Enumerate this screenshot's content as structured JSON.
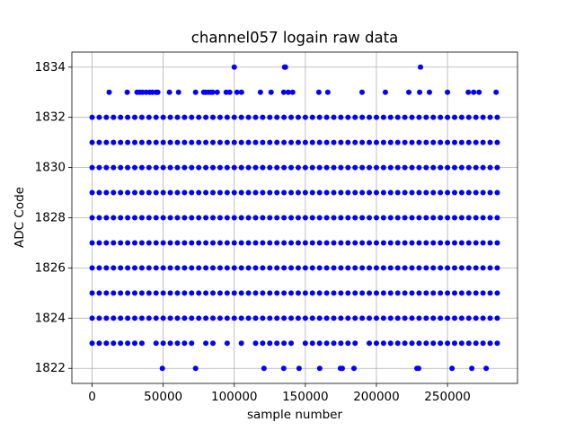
{
  "chart_data": {
    "type": "scatter",
    "title": "channel057 logain raw data",
    "xlabel": "sample number",
    "ylabel": "ADC Code",
    "xlim": [
      -14250,
      299250
    ],
    "ylim": [
      1821.4,
      1834.6
    ],
    "xticks": [
      0,
      50000,
      100000,
      150000,
      200000,
      250000
    ],
    "yticks": [
      1822,
      1824,
      1826,
      1828,
      1830,
      1832,
      1834
    ],
    "grid": true,
    "x": [
      0,
      5000,
      10000,
      15000,
      20000,
      25000,
      30000,
      35000,
      40000,
      45000,
      50000,
      55000,
      60000,
      65000,
      70000,
      75000,
      80000,
      85000,
      90000,
      95000,
      100000,
      105000,
      110000,
      115000,
      120000,
      125000,
      130000,
      135000,
      140000,
      145000,
      150000,
      155000,
      160000,
      165000,
      170000,
      175000,
      180000,
      185000,
      190000,
      195000,
      200000,
      205000,
      210000,
      215000,
      220000,
      225000,
      230000,
      235000,
      240000,
      245000,
      250000,
      255000,
      260000,
      265000,
      270000,
      275000,
      280000,
      285000
    ],
    "series": [
      {
        "color": "#0000ff",
        "values": [
          1824,
          1824,
          1824,
          1824,
          1824,
          1824,
          1824,
          1824,
          1824,
          1824,
          1824,
          1824,
          1824,
          1824,
          1824,
          1824,
          1824,
          1824,
          1824,
          1824,
          1824,
          1824,
          1824,
          1824,
          1824,
          1824,
          1824,
          1824,
          1824,
          1824,
          1824,
          1824,
          1824,
          1824,
          1824,
          1824,
          1824,
          1824,
          1824,
          1824,
          1824,
          1824,
          1824,
          1824,
          1824,
          1824,
          1824,
          1824,
          1824,
          1824,
          1824,
          1824,
          1824,
          1824,
          1824,
          1824,
          1824,
          1824
        ]
      },
      {
        "color": "#0000ff",
        "values": [
          1825,
          1825,
          1825,
          1825,
          1825,
          1825,
          1825,
          1825,
          1825,
          1825,
          1825,
          1825,
          1825,
          1825,
          1825,
          1825,
          1825,
          1825,
          1825,
          1825,
          1825,
          1825,
          1825,
          1825,
          1825,
          1825,
          1825,
          1825,
          1825,
          1825,
          1825,
          1825,
          1825,
          1825,
          1825,
          1825,
          1825,
          1825,
          1825,
          1825,
          1825,
          1825,
          1825,
          1825,
          1825,
          1825,
          1825,
          1825,
          1825,
          1825,
          1825,
          1825,
          1825,
          1825,
          1825,
          1825,
          1825,
          1825
        ]
      },
      {
        "color": "#0000ff",
        "values": [
          1826,
          1826,
          1826,
          1826,
          1826,
          1826,
          1826,
          1826,
          1826,
          1826,
          1826,
          1826,
          1826,
          1826,
          1826,
          1826,
          1826,
          1826,
          1826,
          1826,
          1826,
          1826,
          1826,
          1826,
          1826,
          1826,
          1826,
          1826,
          1826,
          1826,
          1826,
          1826,
          1826,
          1826,
          1826,
          1826,
          1826,
          1826,
          1826,
          1826,
          1826,
          1826,
          1826,
          1826,
          1826,
          1826,
          1826,
          1826,
          1826,
          1826,
          1826,
          1826,
          1826,
          1826,
          1826,
          1826,
          1826,
          1826
        ]
      },
      {
        "color": "#0000ff",
        "values": [
          1827,
          1827,
          1827,
          1827,
          1827,
          1827,
          1827,
          1827,
          1827,
          1827,
          1827,
          1827,
          1827,
          1827,
          1827,
          1827,
          1827,
          1827,
          1827,
          1827,
          1827,
          1827,
          1827,
          1827,
          1827,
          1827,
          1827,
          1827,
          1827,
          1827,
          1827,
          1827,
          1827,
          1827,
          1827,
          1827,
          1827,
          1827,
          1827,
          1827,
          1827,
          1827,
          1827,
          1827,
          1827,
          1827,
          1827,
          1827,
          1827,
          1827,
          1827,
          1827,
          1827,
          1827,
          1827,
          1827,
          1827,
          1827
        ]
      },
      {
        "color": "#0000ff",
        "values": [
          1828,
          1828,
          1828,
          1828,
          1828,
          1828,
          1828,
          1828,
          1828,
          1828,
          1828,
          1828,
          1828,
          1828,
          1828,
          1828,
          1828,
          1828,
          1828,
          1828,
          1828,
          1828,
          1828,
          1828,
          1828,
          1828,
          1828,
          1828,
          1828,
          1828,
          1828,
          1828,
          1828,
          1828,
          1828,
          1828,
          1828,
          1828,
          1828,
          1828,
          1828,
          1828,
          1828,
          1828,
          1828,
          1828,
          1828,
          1828,
          1828,
          1828,
          1828,
          1828,
          1828,
          1828,
          1828,
          1828,
          1828,
          1828
        ]
      },
      {
        "color": "#0000ff",
        "values": [
          1829,
          1829,
          1829,
          1829,
          1829,
          1829,
          1829,
          1829,
          1829,
          1829,
          1829,
          1829,
          1829,
          1829,
          1829,
          1829,
          1829,
          1829,
          1829,
          1829,
          1829,
          1829,
          1829,
          1829,
          1829,
          1829,
          1829,
          1829,
          1829,
          1829,
          1829,
          1829,
          1829,
          1829,
          1829,
          1829,
          1829,
          1829,
          1829,
          1829,
          1829,
          1829,
          1829,
          1829,
          1829,
          1829,
          1829,
          1829,
          1829,
          1829,
          1829,
          1829,
          1829,
          1829,
          1829,
          1829,
          1829,
          1829
        ]
      },
      {
        "color": "#0000ff",
        "values": [
          1830,
          1830,
          1830,
          1830,
          1830,
          1830,
          1830,
          1830,
          1830,
          1830,
          1830,
          1830,
          1830,
          1830,
          1830,
          1830,
          1830,
          1830,
          1830,
          1830,
          1830,
          1830,
          1830,
          1830,
          1830,
          1830,
          1830,
          1830,
          1830,
          1830,
          1830,
          1830,
          1830,
          1830,
          1830,
          1830,
          1830,
          1830,
          1830,
          1830,
          1830,
          1830,
          1830,
          1830,
          1830,
          1830,
          1830,
          1830,
          1830,
          1830,
          1830,
          1830,
          1830,
          1830,
          1830,
          1830,
          1830,
          1830
        ]
      },
      {
        "color": "#0000ff",
        "values": [
          1831,
          1831,
          1831,
          1831,
          1831,
          1831,
          1831,
          1831,
          1831,
          1831,
          1831,
          1831,
          1831,
          1831,
          1831,
          1831,
          1831,
          1831,
          1831,
          1831,
          1831,
          1831,
          1831,
          1831,
          1831,
          1831,
          1831,
          1831,
          1831,
          1831,
          1831,
          1831,
          1831,
          1831,
          1831,
          1831,
          1831,
          1831,
          1831,
          1831,
          1831,
          1831,
          1831,
          1831,
          1831,
          1831,
          1831,
          1831,
          1831,
          1831,
          1831,
          1831,
          1831,
          1831,
          1831,
          1831,
          1831,
          1831
        ]
      },
      {
        "color": "#0000ff",
        "values": [
          1832,
          1832,
          1832,
          1832,
          1832,
          1832,
          1832,
          1832,
          1832,
          1832,
          1832,
          1832,
          1832,
          1832,
          1832,
          1832,
          1832,
          1832,
          1832,
          1832,
          1832,
          1832,
          1832,
          1832,
          1832,
          1832,
          1832,
          1832,
          1832,
          1832,
          1832,
          1832,
          1832,
          1832,
          1832,
          1832,
          1832,
          1832,
          1832,
          1832,
          1832,
          1832,
          1832,
          1832,
          1832,
          1832,
          1832,
          1832,
          1832,
          1832,
          1832,
          1832,
          1832,
          1832,
          1832,
          1832,
          1832,
          1832
        ]
      },
      {
        "color": "#0000ff",
        "x": [
          0,
          5000,
          10000,
          15000,
          20000,
          25000,
          30000,
          35000,
          45000,
          50000,
          55000,
          60000,
          65000,
          70000,
          80000,
          85000,
          95000,
          105000,
          115000,
          120000,
          125000,
          130000,
          135000,
          140000,
          150000,
          155000,
          160000,
          165000,
          170000,
          175000,
          180000,
          185000,
          195000,
          200000,
          205000,
          210000,
          215000,
          220000,
          225000,
          230000,
          235000,
          240000,
          245000,
          250000,
          255000,
          260000,
          265000,
          270000,
          275000,
          280000,
          285000
        ],
        "values": [
          1823,
          1823,
          1823,
          1823,
          1823,
          1823,
          1823,
          1823,
          1823,
          1823,
          1823,
          1823,
          1823,
          1823,
          1823,
          1823,
          1823,
          1823,
          1823,
          1823,
          1823,
          1823,
          1823,
          1823,
          1823,
          1823,
          1823,
          1823,
          1823,
          1823,
          1823,
          1823,
          1823,
          1823,
          1823,
          1823,
          1823,
          1823,
          1823,
          1823,
          1823,
          1823,
          1823,
          1823,
          1823,
          1823,
          1823,
          1823,
          1823,
          1823,
          1823
        ]
      },
      {
        "color": "#0000ff",
        "x": [
          49400,
          72800,
          120900,
          134800,
          145600,
          160100,
          174700,
          176000,
          184200,
          228500,
          229700,
          253200,
          267100,
          277200
        ],
        "values": [
          1822,
          1822,
          1822,
          1822,
          1822,
          1822,
          1822,
          1822,
          1822,
          1822,
          1822,
          1822,
          1822,
          1822
        ]
      },
      {
        "color": "#0000ff",
        "x": [
          12000,
          24700,
          31600,
          33500,
          35400,
          38000,
          40500,
          42400,
          44900,
          46200,
          54400,
          60800,
          72800,
          78500,
          79700,
          81600,
          83500,
          84800,
          88000,
          94300,
          96800,
          101900,
          105100,
          118400,
          125900,
          134800,
          138000,
          141100,
          159500,
          165800,
          189900,
          206300,
          222800,
          230400,
          237300,
          250000,
          264600,
          268400,
          272200,
          284200
        ],
        "values": [
          1833,
          1833,
          1833,
          1833,
          1833,
          1833,
          1833,
          1833,
          1833,
          1833,
          1833,
          1833,
          1833,
          1833,
          1833,
          1833,
          1833,
          1833,
          1833,
          1833,
          1833,
          1833,
          1833,
          1833,
          1833,
          1833,
          1833,
          1833,
          1833,
          1833,
          1833,
          1833,
          1833,
          1833,
          1833,
          1833,
          1833,
          1833,
          1833,
          1833
        ]
      },
      {
        "color": "#0000ff",
        "x": [
          100000,
          135400,
          136000,
          231000
        ],
        "values": [
          1834,
          1834,
          1834,
          1834
        ]
      }
    ]
  }
}
